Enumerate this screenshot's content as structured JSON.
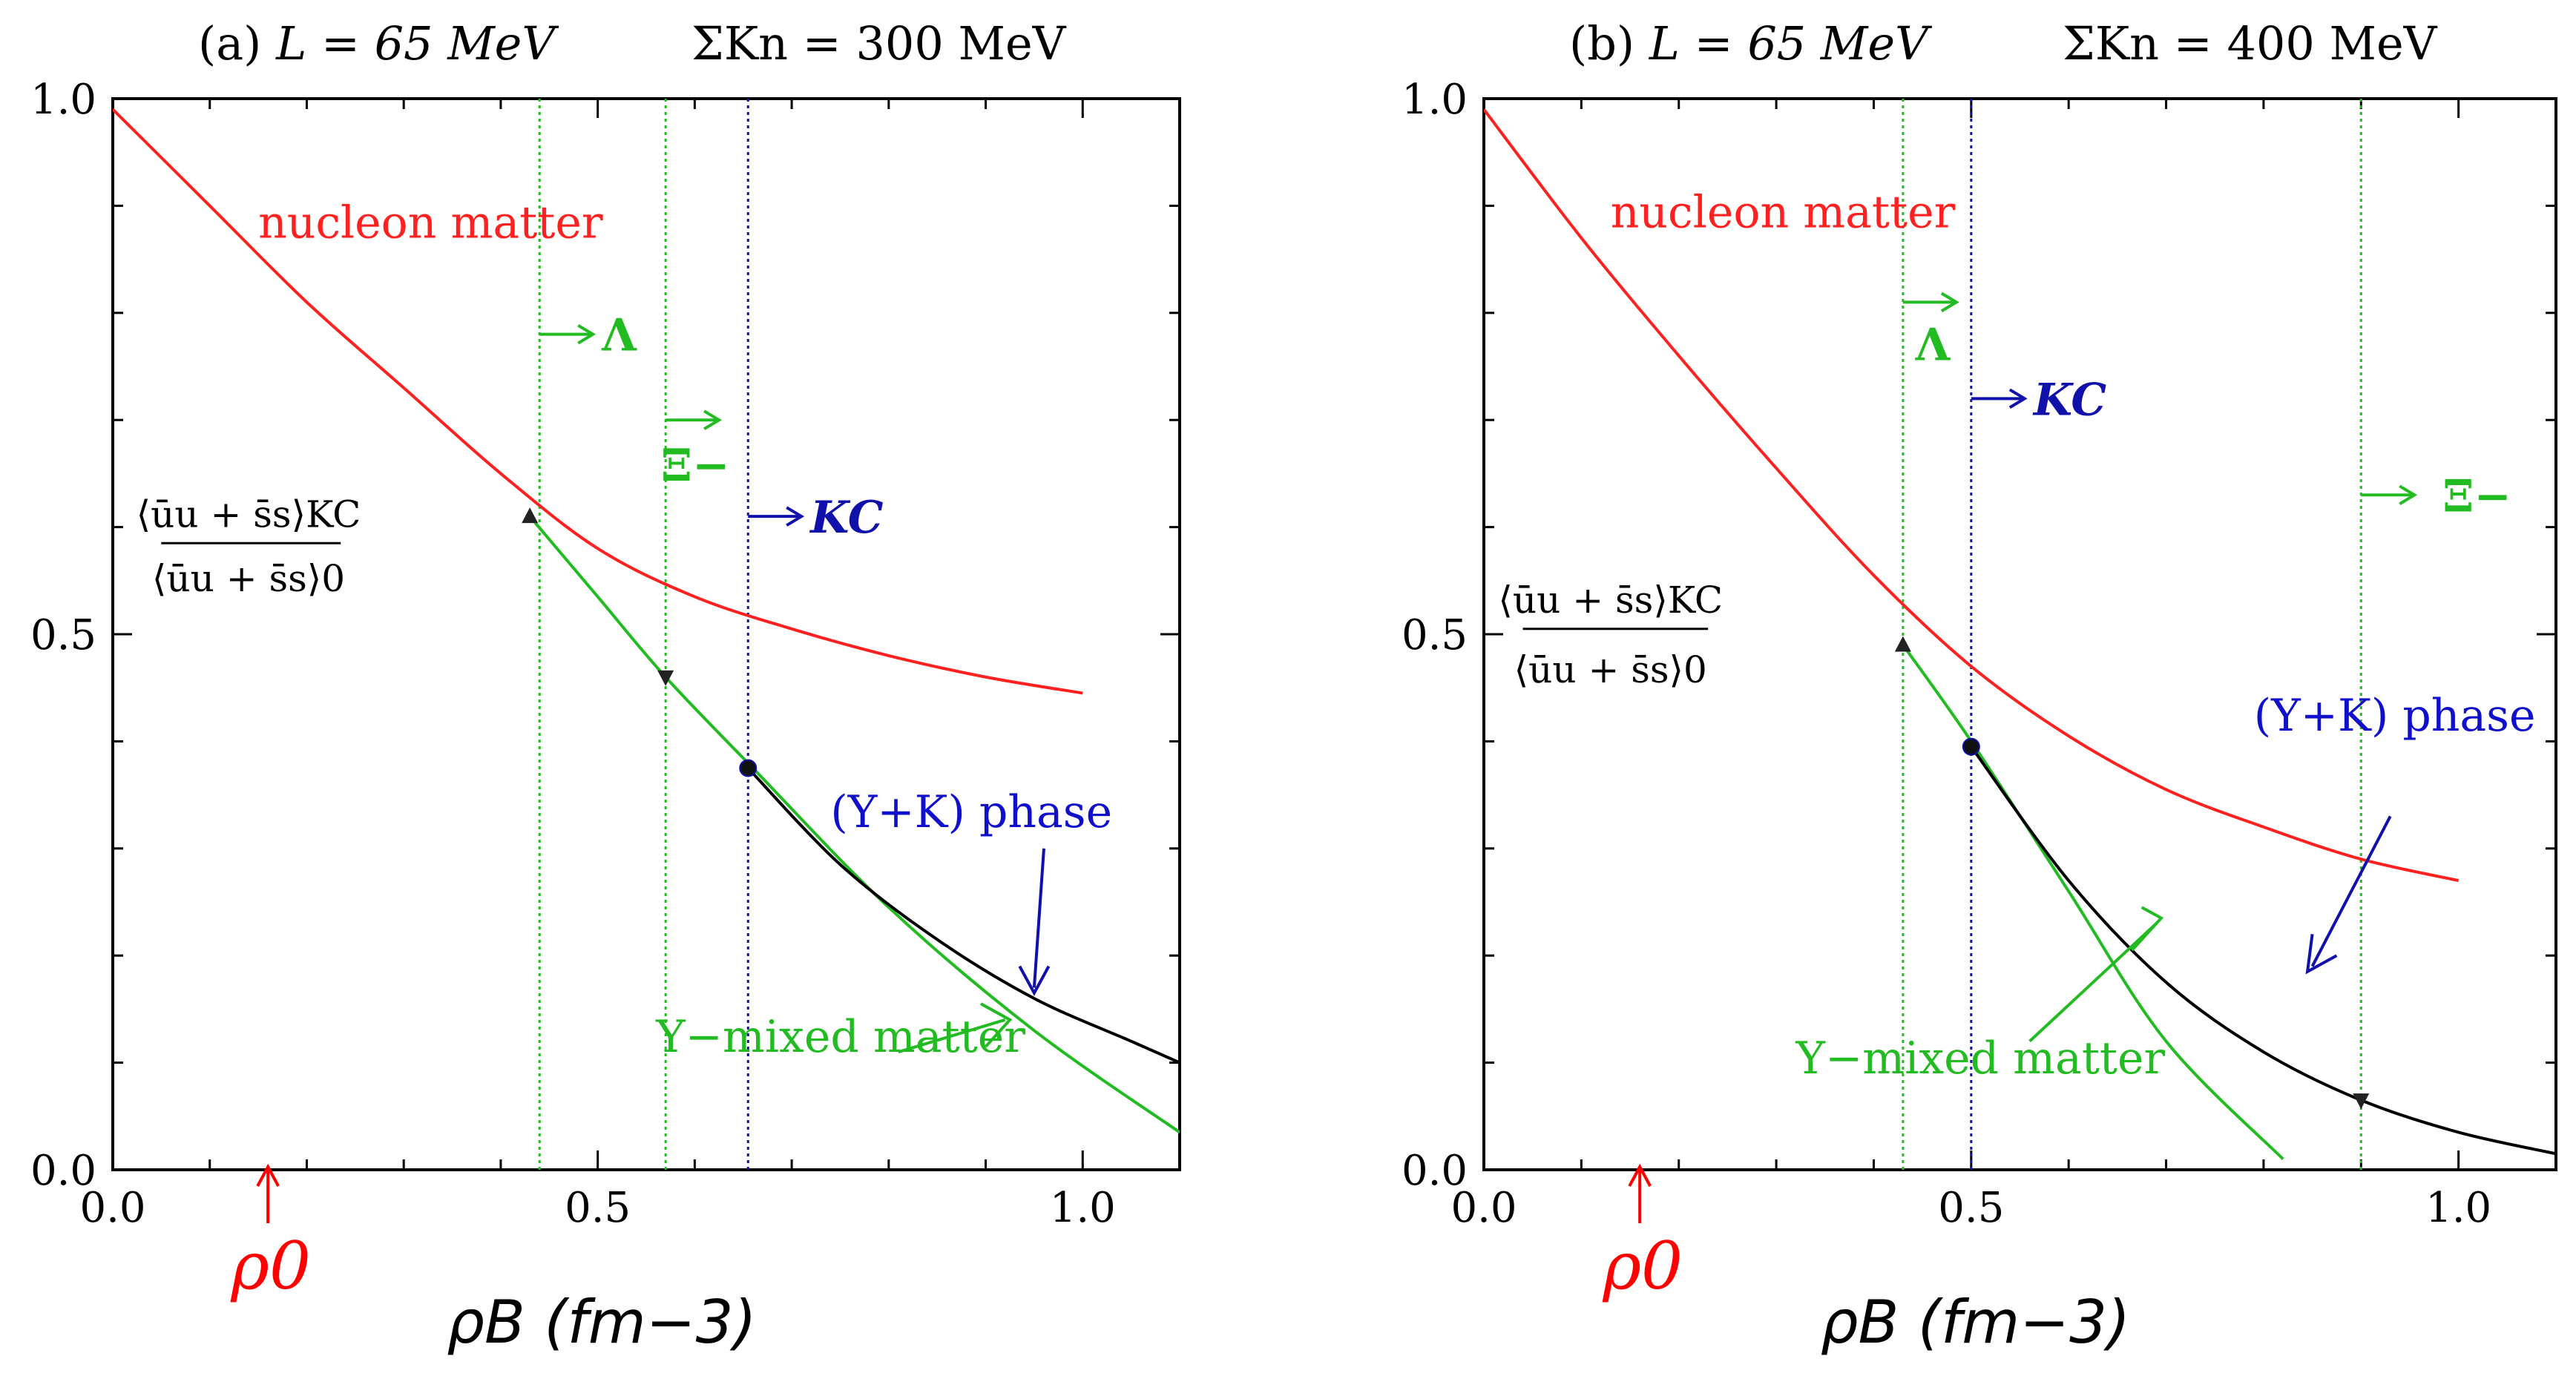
{
  "chart_data": [
    {
      "type": "line",
      "panel": "a",
      "title_label": "(a)",
      "title_L": "L = 65 MeV",
      "title_sigma": "ΣKn = 300 MeV",
      "xlabel": "ρB (fm−3)",
      "ylabel": "⟨ūu + s̄s⟩KC / ⟨ūu + s̄s⟩0",
      "xlim": [
        0.0,
        1.1
      ],
      "ylim": [
        0.0,
        1.0
      ],
      "x_ticks": [
        "0.0",
        "0.5",
        "1.0"
      ],
      "y_ticks": [
        "0.0",
        "0.5",
        "1.0"
      ],
      "rho0_label": "ρ0",
      "rho0_value": 0.16,
      "frac_num": "⟨ūu + s̄s⟩KC",
      "frac_den": "⟨ūu + s̄s⟩0",
      "series": [
        {
          "name": "nucleon matter",
          "color": "#ff2020",
          "x": [
            0.0,
            0.1,
            0.2,
            0.3,
            0.4,
            0.5,
            0.6,
            0.7,
            0.8,
            0.9,
            1.0
          ],
          "y": [
            0.99,
            0.9,
            0.81,
            0.73,
            0.65,
            0.58,
            0.535,
            0.505,
            0.48,
            0.46,
            0.445
          ]
        },
        {
          "name": "Y−mixed matter",
          "color": "#22bb22",
          "x": [
            0.43,
            0.5,
            0.57,
            0.66,
            0.8,
            0.95,
            1.1
          ],
          "y": [
            0.61,
            0.535,
            0.46,
            0.375,
            0.245,
            0.13,
            0.035
          ]
        },
        {
          "name": "(Y+K) phase",
          "color": "#000000",
          "x": [
            0.655,
            0.75,
            0.85,
            0.95,
            1.05,
            1.1
          ],
          "y": [
            0.375,
            0.285,
            0.215,
            0.16,
            0.12,
            0.1
          ]
        }
      ],
      "thresholds": [
        {
          "label": "Λ",
          "x": 0.44,
          "color": "#22bb22",
          "label_y": 0.78
        },
        {
          "label": "Ξ−",
          "x": 0.57,
          "color": "#22bb22",
          "label_y": 0.7
        },
        {
          "label": "KC",
          "x": 0.655,
          "color": "#1010aa",
          "label_y": 0.61
        }
      ],
      "markers": [
        {
          "kind": "triangle-up",
          "x": 0.43,
          "y": 0.61
        },
        {
          "kind": "triangle-down",
          "x": 0.57,
          "y": 0.46
        },
        {
          "kind": "dot",
          "x": 0.655,
          "y": 0.375
        }
      ],
      "labels": {
        "nucleon": "nucleon matter",
        "ymixed": "Y−mixed matter",
        "yk": "(Y+K) phase"
      }
    },
    {
      "type": "line",
      "panel": "b",
      "title_label": "(b)",
      "title_L": "L = 65 MeV",
      "title_sigma": "ΣKn = 400 MeV",
      "xlabel": "ρB (fm−3)",
      "ylabel": "⟨ūu + s̄s⟩KC / ⟨ūu + s̄s⟩0",
      "xlim": [
        0.0,
        1.1
      ],
      "ylim": [
        0.0,
        1.0
      ],
      "x_ticks": [
        "0.0",
        "0.5",
        "1.0"
      ],
      "y_ticks": [
        "0.0",
        "0.5",
        "1.0"
      ],
      "rho0_label": "ρ0",
      "rho0_value": 0.16,
      "frac_num": "⟨ūu + s̄s⟩KC",
      "frac_den": "⟨ūu + s̄s⟩0",
      "series": [
        {
          "name": "nucleon matter",
          "color": "#ff2020",
          "x": [
            0.0,
            0.1,
            0.2,
            0.3,
            0.4,
            0.5,
            0.6,
            0.7,
            0.8,
            0.9,
            1.0
          ],
          "y": [
            0.99,
            0.87,
            0.76,
            0.655,
            0.555,
            0.47,
            0.405,
            0.355,
            0.32,
            0.29,
            0.27
          ]
        },
        {
          "name": "Y−mixed matter",
          "color": "#22bb22",
          "x": [
            0.43,
            0.5,
            0.6,
            0.7,
            0.82
          ],
          "y": [
            0.49,
            0.4,
            0.26,
            0.12,
            0.01
          ]
        },
        {
          "name": "(Y+K) phase",
          "color": "#000000",
          "x": [
            0.5,
            0.6,
            0.7,
            0.8,
            0.9,
            1.0,
            1.1
          ],
          "y": [
            0.395,
            0.27,
            0.175,
            0.11,
            0.065,
            0.035,
            0.015
          ]
        }
      ],
      "thresholds": [
        {
          "label": "Λ",
          "x": 0.43,
          "color": "#22bb22",
          "label_y": 0.81
        },
        {
          "label": "KC",
          "x": 0.5,
          "color": "#1010aa",
          "label_y": 0.72
        },
        {
          "label": "Ξ−",
          "x": 0.9,
          "color": "#22bb22",
          "label_y": 0.63
        }
      ],
      "markers": [
        {
          "kind": "triangle-up",
          "x": 0.43,
          "y": 0.49
        },
        {
          "kind": "dot",
          "x": 0.5,
          "y": 0.395
        },
        {
          "kind": "triangle-down",
          "x": 0.9,
          "y": 0.065
        }
      ],
      "labels": {
        "nucleon": "nucleon matter",
        "ymixed": "Y−mixed matter",
        "yk": "(Y+K) phase"
      }
    }
  ]
}
